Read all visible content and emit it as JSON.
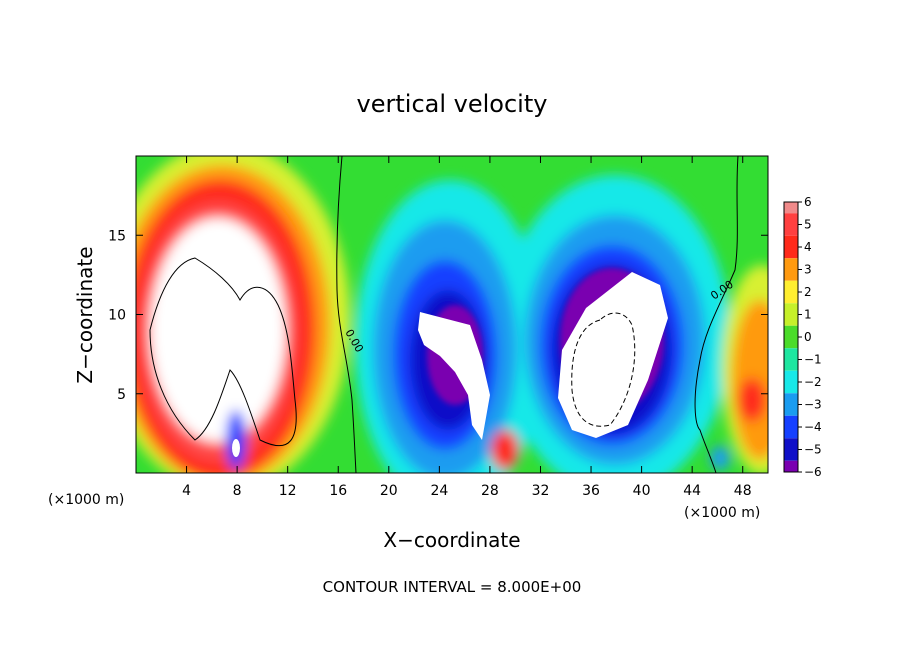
{
  "chart_data": {
    "type": "heatmap",
    "title": "vertical velocity",
    "xlabel": "X−coordinate",
    "ylabel": "Z−coordinate",
    "xlim": [
      0,
      50
    ],
    "ylim": [
      0,
      20
    ],
    "x_ticks": [
      4,
      8,
      12,
      16,
      20,
      24,
      28,
      32,
      36,
      40,
      44,
      48
    ],
    "y_ticks": [
      5,
      10,
      15
    ],
    "x_unit_label_left": "(×1000 m)",
    "x_unit_label_right": "(×1000 m)",
    "footer": "CONTOUR INTERVAL = 8.000E+00",
    "contour_labels": [
      "0.00",
      "0.00"
    ],
    "colorbar": {
      "ticks": [
        "6",
        "5",
        "4",
        "3",
        "2",
        "1",
        "0",
        "−1",
        "−2",
        "−3",
        "−4",
        "−5",
        "−6"
      ],
      "min": -6,
      "max": 6,
      "levels": [
        {
          "value": 6,
          "color": "#f08a8a"
        },
        {
          "value": 5,
          "color": "#ff4040"
        },
        {
          "value": 4,
          "color": "#ff2a1a"
        },
        {
          "value": 3,
          "color": "#ff9a10"
        },
        {
          "value": 2,
          "color": "#ffee30"
        },
        {
          "value": 1,
          "color": "#c6f02a"
        },
        {
          "value": 0,
          "color": "#4bdc2a"
        },
        {
          "value": -1,
          "color": "#1ee6a0"
        },
        {
          "value": -2,
          "color": "#18e8e8"
        },
        {
          "value": -3,
          "color": "#1a9cf0"
        },
        {
          "value": -4,
          "color": "#1540ff"
        },
        {
          "value": -5,
          "color": "#1010c8"
        },
        {
          "value": -6,
          "color": "#7a00b0"
        }
      ]
    },
    "features": [
      {
        "name": "left updraft",
        "x_center": 6,
        "z_center": 10,
        "sign": "positive",
        "peak": ">6"
      },
      {
        "name": "central downdraft A",
        "x_center": 24,
        "z_center": 8,
        "sign": "negative",
        "peak": "<-6"
      },
      {
        "name": "central downdraft B",
        "x_center": 36,
        "z_center": 9,
        "sign": "negative",
        "peak": "<-6"
      },
      {
        "name": "right updraft",
        "x_center": 49,
        "z_center": 5,
        "sign": "positive",
        "peak": "4"
      }
    ]
  }
}
